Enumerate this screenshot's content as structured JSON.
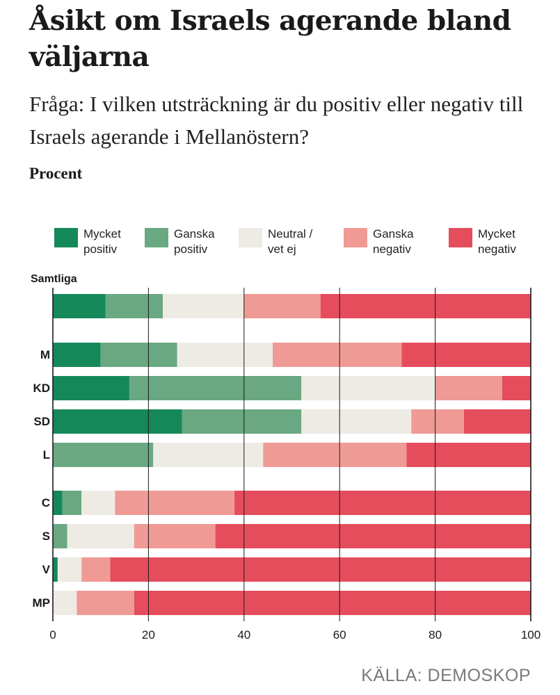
{
  "chart_data": {
    "type": "bar",
    "orientation": "horizontal",
    "stacked": true,
    "title": "Åsikt om Israels agerande bland väljarna",
    "subtitle": "Fråga: I vilken utsträckning är du positiv eller negativ till Israels agerande i Mellanöstern?",
    "unit_label": "Procent",
    "source": "KÄLLA: DEMOSKOP",
    "group_label": "Samtliga",
    "categories": [
      "",
      "M",
      "KD",
      "SD",
      "L",
      "C",
      "S",
      "V",
      "MP"
    ],
    "series": [
      {
        "name": "Mycket positiv",
        "color": "#15885a",
        "values": [
          11,
          10,
          16,
          27,
          0,
          2,
          0,
          1,
          0
        ]
      },
      {
        "name": "Ganska positiv",
        "color": "#6aa881",
        "values": [
          12,
          16,
          36,
          25,
          21,
          4,
          3,
          0,
          0
        ]
      },
      {
        "name": "Neutral / vet ej",
        "color": "#eeebe4",
        "values": [
          17,
          20,
          28,
          23,
          23,
          7,
          14,
          5,
          5
        ]
      },
      {
        "name": "Ganska negativ",
        "color": "#f09a95",
        "values": [
          16,
          27,
          14,
          11,
          30,
          25,
          17,
          6,
          12
        ]
      },
      {
        "name": "Mycket negativ",
        "color": "#e54d5c",
        "values": [
          44,
          27,
          6,
          14,
          26,
          62,
          66,
          88,
          83
        ]
      }
    ],
    "legend_lines": [
      [
        "Mycket",
        "positiv"
      ],
      [
        "Ganska",
        "positiv"
      ],
      [
        "Neutral /",
        "vet ej"
      ],
      [
        "Ganska",
        "negativ"
      ],
      [
        "Mycket",
        "negativ"
      ]
    ],
    "x_ticks": [
      "0",
      "20",
      "40",
      "60",
      "80",
      "100"
    ],
    "xlim": [
      0,
      100
    ],
    "grid": true,
    "legend_position": "top"
  }
}
